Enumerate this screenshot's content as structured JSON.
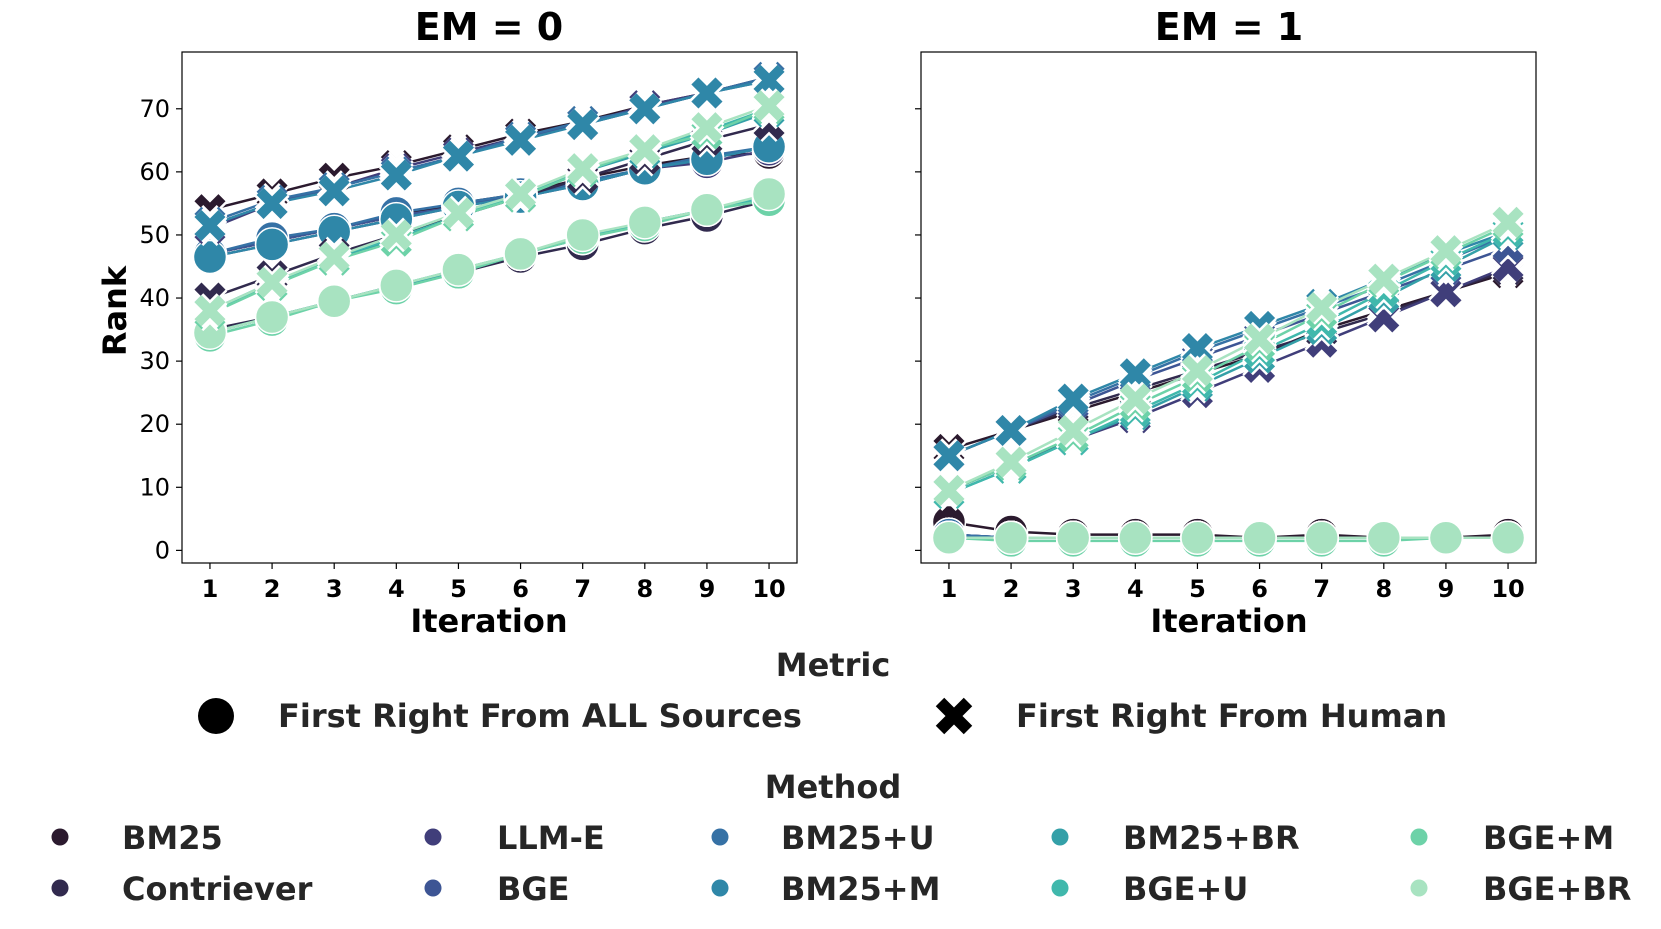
{
  "chart_data": [
    {
      "type": "line",
      "title": "EM = 0",
      "xlabel": "Iteration",
      "ylabel": "Rank",
      "x": [
        1,
        2,
        3,
        4,
        5,
        6,
        7,
        8,
        9,
        10
      ],
      "xlim": [
        0.55,
        10.45
      ],
      "ylim": [
        -2,
        79
      ],
      "yticks": [
        0,
        10,
        20,
        30,
        40,
        50,
        60,
        70
      ],
      "grid": false,
      "series": [
        {
          "method": "BM25",
          "metric": "First Right From ALL Sources",
          "color": "#2b1a2e",
          "values": [
            47,
            49,
            51,
            53,
            55,
            56.5,
            59,
            61,
            62.5,
            63
          ]
        },
        {
          "method": "Contriever",
          "metric": "First Right From ALL Sources",
          "color": "#312a4e",
          "values": [
            35,
            37,
            39.5,
            42,
            44,
            46.5,
            48.5,
            51,
            53,
            55.5
          ]
        },
        {
          "method": "LLM-E",
          "metric": "First Right From ALL Sources",
          "color": "#403e7a",
          "values": [
            46.5,
            48.5,
            50.5,
            52.5,
            54.5,
            56,
            58,
            60.5,
            61.5,
            63.5
          ]
        },
        {
          "method": "BGE",
          "metric": "First Right From ALL Sources",
          "color": "#3d5594",
          "values": [
            47,
            49,
            51,
            53,
            54.5,
            56.5,
            58,
            60.5,
            62,
            64
          ]
        },
        {
          "method": "BM25+U",
          "metric": "First Right From ALL Sources",
          "color": "#3671a5",
          "values": [
            47,
            49.5,
            51,
            53.5,
            55,
            56.5,
            58.5,
            60.5,
            62.5,
            64
          ]
        },
        {
          "method": "BM25+M",
          "metric": "First Right From ALL Sources",
          "color": "#2f87a8",
          "values": [
            46.5,
            48.5,
            50.5,
            52.5,
            54.5,
            56,
            58,
            60.5,
            62,
            64
          ]
        },
        {
          "method": "BM25+BR",
          "metric": "First Right From ALL Sources",
          "color": "#34a0a8",
          "values": [
            34.5,
            37,
            39.5,
            42,
            44,
            47,
            49.5,
            52,
            54,
            56
          ]
        },
        {
          "method": "BGE+U",
          "metric": "First Right From ALL Sources",
          "color": "#40b8ac",
          "values": [
            34.5,
            37,
            39.5,
            42,
            44.5,
            47,
            49.5,
            52,
            54,
            56
          ]
        },
        {
          "method": "BGE+M",
          "metric": "First Right From ALL Sources",
          "color": "#6dd2a8",
          "values": [
            34,
            36.5,
            39.5,
            41.5,
            44,
            47,
            49.5,
            51.5,
            54,
            55.5
          ]
        },
        {
          "method": "BGE+BR",
          "metric": "First Right From ALL Sources",
          "color": "#a8e3c1",
          "values": [
            34.5,
            37,
            39.5,
            42,
            44.5,
            47,
            50,
            52,
            54,
            56.5
          ]
        },
        {
          "method": "BM25",
          "metric": "First Right From Human",
          "color": "#2b1a2e",
          "values": [
            54,
            56.5,
            59,
            61,
            63.5,
            66,
            68,
            70.5,
            72.5,
            75
          ]
        },
        {
          "method": "Contriever",
          "metric": "First Right From Human",
          "color": "#312a4e",
          "values": [
            40,
            43.5,
            47,
            50,
            53,
            56,
            59,
            62,
            65,
            67.5
          ]
        },
        {
          "method": "LLM-E",
          "metric": "First Right From Human",
          "color": "#403e7a",
          "values": [
            51,
            55,
            57.5,
            60.5,
            63,
            65.5,
            67.5,
            70.5,
            72.5,
            75
          ]
        },
        {
          "method": "BGE",
          "metric": "First Right From Human",
          "color": "#3d5594",
          "values": [
            51.5,
            55,
            57.5,
            60,
            62.5,
            65.5,
            67.5,
            70,
            72.5,
            74.5
          ]
        },
        {
          "method": "BM25+U",
          "metric": "First Right From Human",
          "color": "#3671a5",
          "values": [
            52,
            55.5,
            57.5,
            60,
            62.5,
            65.5,
            68,
            70,
            72.5,
            75
          ]
        },
        {
          "method": "BM25+M",
          "metric": "First Right From Human",
          "color": "#2f87a8",
          "values": [
            51.5,
            55,
            57,
            59.5,
            62.5,
            65,
            67.5,
            70,
            72.5,
            74.5
          ]
        },
        {
          "method": "BM25+BR",
          "metric": "First Right From Human",
          "color": "#34a0a8",
          "values": [
            38,
            42.5,
            46,
            49.5,
            53,
            56.5,
            60,
            63,
            66,
            69.5
          ]
        },
        {
          "method": "BGE+U",
          "metric": "First Right From Human",
          "color": "#40b8ac",
          "values": [
            38,
            42,
            46.5,
            49.5,
            53,
            56.5,
            60,
            63.5,
            66.5,
            70
          ]
        },
        {
          "method": "BGE+M",
          "metric": "First Right From Human",
          "color": "#6dd2a8",
          "values": [
            37.5,
            42,
            46,
            49,
            53,
            56,
            60,
            63.5,
            66,
            70
          ]
        },
        {
          "method": "BGE+BR",
          "metric": "First Right From Human",
          "color": "#a8e3c1",
          "values": [
            38,
            42.5,
            46.5,
            50,
            53.5,
            56.5,
            60.5,
            63.5,
            67,
            70.5
          ]
        }
      ]
    },
    {
      "type": "line",
      "title": "EM = 1",
      "xlabel": "Iteration",
      "ylabel": "",
      "x": [
        1,
        2,
        3,
        4,
        5,
        6,
        7,
        8,
        9,
        10
      ],
      "xlim": [
        0.55,
        10.45
      ],
      "ylim": [
        -2,
        79
      ],
      "grid": false,
      "series": [
        {
          "method": "BM25",
          "metric": "First Right From ALL Sources",
          "color": "#2b1a2e",
          "values": [
            4.5,
            3,
            2.5,
            2.5,
            2.5,
            2,
            2.5,
            2,
            2,
            2.5
          ]
        },
        {
          "method": "Contriever",
          "metric": "First Right From ALL Sources",
          "color": "#312a4e",
          "values": [
            2.5,
            2,
            2,
            2,
            2,
            2,
            2,
            2,
            2,
            2
          ]
        },
        {
          "method": "LLM-E",
          "metric": "First Right From ALL Sources",
          "color": "#403e7a",
          "values": [
            2.5,
            2,
            2,
            2,
            2,
            2,
            2,
            2,
            2,
            2
          ]
        },
        {
          "method": "BGE",
          "metric": "First Right From ALL Sources",
          "color": "#3d5594",
          "values": [
            2.5,
            2,
            2,
            2,
            2,
            2,
            2,
            2,
            2,
            2
          ]
        },
        {
          "method": "BM25+U",
          "metric": "First Right From ALL Sources",
          "color": "#3671a5",
          "values": [
            2.5,
            2,
            2,
            2,
            2,
            2,
            2,
            2,
            2,
            2
          ]
        },
        {
          "method": "BM25+M",
          "metric": "First Right From ALL Sources",
          "color": "#2f87a8",
          "values": [
            2,
            2,
            2,
            2,
            2,
            2,
            2,
            2,
            2,
            2
          ]
        },
        {
          "method": "BM25+BR",
          "metric": "First Right From ALL Sources",
          "color": "#34a0a8",
          "values": [
            2,
            2,
            2,
            2,
            2,
            2,
            2,
            2,
            2,
            2
          ]
        },
        {
          "method": "BGE+U",
          "metric": "First Right From ALL Sources",
          "color": "#40b8ac",
          "values": [
            2,
            2,
            2,
            2,
            2,
            2,
            2,
            2,
            2,
            2
          ]
        },
        {
          "method": "BGE+M",
          "metric": "First Right From ALL Sources",
          "color": "#6dd2a8",
          "values": [
            2,
            1.5,
            1.5,
            1.5,
            1.5,
            1.5,
            1.5,
            1.5,
            2,
            2
          ]
        },
        {
          "method": "BGE+BR",
          "metric": "First Right From ALL Sources",
          "color": "#a8e3c1",
          "values": [
            2,
            2,
            2,
            2,
            2,
            2,
            2,
            2,
            2,
            2
          ]
        },
        {
          "method": "BM25",
          "metric": "First Right From Human",
          "color": "#2b1a2e",
          "values": [
            16,
            19,
            22,
            25,
            28,
            31,
            35,
            38,
            41,
            44
          ]
        },
        {
          "method": "Contriever",
          "metric": "First Right From Human",
          "color": "#312a4e",
          "values": [
            15,
            19,
            22.5,
            25.5,
            28.5,
            31.5,
            34.5,
            37.5,
            41,
            44.5
          ]
        },
        {
          "method": "LLM-E",
          "metric": "First Right From Human",
          "color": "#403e7a",
          "values": [
            9.5,
            13.5,
            17.5,
            21,
            25,
            29,
            33,
            37,
            41,
            45
          ]
        },
        {
          "method": "BGE",
          "metric": "First Right From Human",
          "color": "#3d5594",
          "values": [
            15,
            19,
            23,
            27,
            30.5,
            34,
            37.5,
            41,
            44.5,
            48
          ]
        },
        {
          "method": "BM25+U",
          "metric": "First Right From Human",
          "color": "#3671a5",
          "values": [
            15,
            19,
            23.5,
            27.5,
            31.5,
            35,
            38.5,
            42,
            46,
            50
          ]
        },
        {
          "method": "BM25+M",
          "metric": "First Right From Human",
          "color": "#2f87a8",
          "values": [
            15,
            19,
            24,
            28,
            32,
            35.5,
            39,
            43,
            47,
            50.5
          ]
        },
        {
          "method": "BM25+BR",
          "metric": "First Right From Human",
          "color": "#34a0a8",
          "values": [
            9,
            13,
            17.5,
            21.5,
            26,
            30.5,
            35,
            40,
            45,
            50
          ]
        },
        {
          "method": "BGE+U",
          "metric": "First Right From Human",
          "color": "#40b8ac",
          "values": [
            9,
            13,
            17.5,
            22,
            26.5,
            31.5,
            36,
            41,
            46,
            50.5
          ]
        },
        {
          "method": "BGE+M",
          "metric": "First Right From Human",
          "color": "#6dd2a8",
          "values": [
            9.5,
            13.5,
            18,
            23,
            27.5,
            32.5,
            37.5,
            42.5,
            47,
            51.5
          ]
        },
        {
          "method": "BGE+BR",
          "metric": "First Right From Human",
          "color": "#a8e3c1",
          "values": [
            9.5,
            14,
            19,
            24,
            28.5,
            33.5,
            38.5,
            43,
            47.5,
            52
          ]
        }
      ]
    }
  ],
  "legend": {
    "metric_title": "Metric",
    "metric_items": [
      {
        "label": "First Right From ALL Sources",
        "marker": "circle"
      },
      {
        "label": "First Right From Human",
        "marker": "x"
      }
    ],
    "method_title": "Method",
    "method_items": [
      {
        "label": "BM25",
        "color": "#2b1a2e"
      },
      {
        "label": "Contriever",
        "color": "#312a4e"
      },
      {
        "label": "LLM-E",
        "color": "#403e7a"
      },
      {
        "label": "BGE",
        "color": "#3d5594"
      },
      {
        "label": "BM25+U",
        "color": "#3671a5"
      },
      {
        "label": "BM25+M",
        "color": "#2f87a8"
      },
      {
        "label": "BM25+BR",
        "color": "#34a0a8"
      },
      {
        "label": "BGE+U",
        "color": "#40b8ac"
      },
      {
        "label": "BGE+M",
        "color": "#6dd2a8"
      },
      {
        "label": "BGE+BR",
        "color": "#a8e3c1"
      }
    ]
  }
}
